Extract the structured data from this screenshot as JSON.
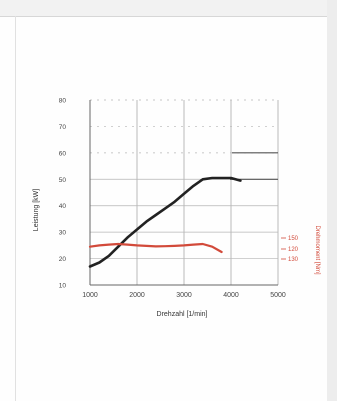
{
  "chart_data": {
    "type": "line",
    "xlabel": "Drehzahl [1/min]",
    "ylabel": "Leistung [kW]",
    "y2label": "Drehmoment [Nm]",
    "xticks": [
      "1000",
      "2000",
      "3000",
      "4000",
      "5000"
    ],
    "yticks": [
      "10",
      "20",
      "30",
      "40",
      "50",
      "60",
      "70",
      "80"
    ],
    "y2ticks": [
      "150",
      "120",
      "130"
    ],
    "xlim": [
      1000,
      5000
    ],
    "ylim": [
      10,
      80
    ],
    "grid": true,
    "legend": "none",
    "series": [
      {
        "color": "#222222",
        "points": [
          [
            1000,
            17
          ],
          [
            1200,
            18.5
          ],
          [
            1400,
            21
          ],
          [
            1600,
            24.5
          ],
          [
            1800,
            28
          ],
          [
            2000,
            31
          ],
          [
            2200,
            34
          ],
          [
            2400,
            36.5
          ],
          [
            2600,
            39
          ],
          [
            2800,
            41.5
          ],
          [
            3000,
            44.5
          ],
          [
            3200,
            47.5
          ],
          [
            3400,
            50
          ],
          [
            3600,
            50.5
          ],
          [
            3800,
            50.5
          ],
          [
            4000,
            50.5
          ],
          [
            4200,
            49.5
          ]
        ]
      },
      {
        "color": "#d24a3a",
        "points": [
          [
            1000,
            24.5
          ],
          [
            1200,
            25
          ],
          [
            1400,
            25.3
          ],
          [
            1600,
            25.5
          ],
          [
            1800,
            25.3
          ],
          [
            2000,
            25
          ],
          [
            2200,
            24.8
          ],
          [
            2400,
            24.6
          ],
          [
            2600,
            24.7
          ],
          [
            2800,
            24.8
          ],
          [
            3000,
            25
          ],
          [
            3200,
            25.3
          ],
          [
            3400,
            25.5
          ],
          [
            3600,
            24.5
          ],
          [
            3800,
            22.5
          ]
        ]
      }
    ]
  }
}
